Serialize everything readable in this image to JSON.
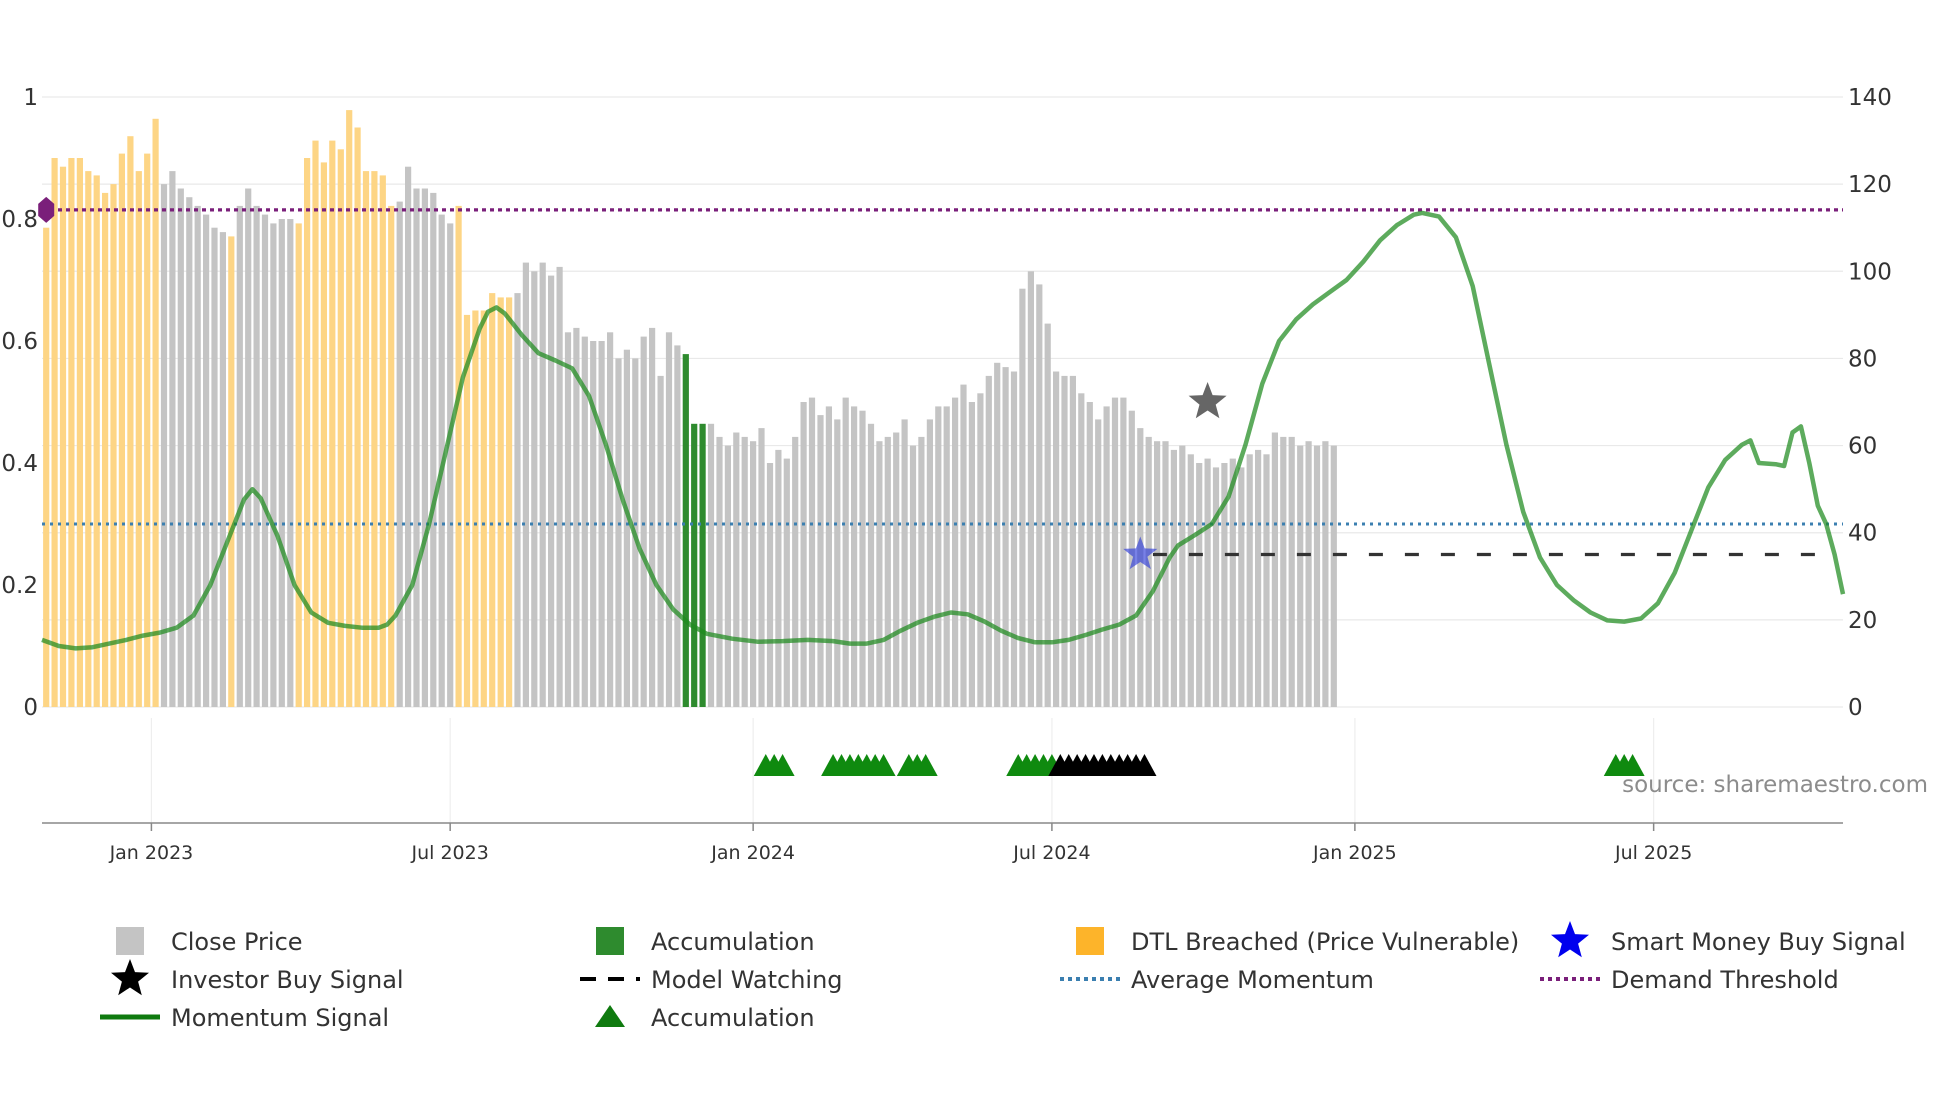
{
  "chart_data": {
    "type": "bar",
    "title": "",
    "source": "source: sharemaestro.com",
    "left_axis": {
      "ylim": [
        0,
        1
      ],
      "ticks": [
        "0",
        "0.2",
        "0.4",
        "0.6",
        "0.8",
        "1"
      ],
      "tick_values": [
        0,
        0.2,
        0.4,
        0.6,
        0.8,
        1
      ]
    },
    "right_axis": {
      "ylim": [
        0,
        140
      ],
      "ticks": [
        "0",
        "20",
        "40",
        "60",
        "80",
        "100",
        "120",
        "140"
      ],
      "tick_values": [
        0,
        20,
        40,
        60,
        80,
        100,
        120,
        140
      ]
    },
    "x_axis": {
      "range_weeks": [
        0,
        214
      ],
      "ticks": [
        {
          "label": "Jan 2023",
          "week": 13
        },
        {
          "label": "Jul 2023",
          "week": 48.5
        },
        {
          "label": "Jan 2024",
          "week": 84.5
        },
        {
          "label": "Jul 2024",
          "week": 120
        },
        {
          "label": "Jan 2025",
          "week": 156
        },
        {
          "label": "Jul 2025",
          "week": 191.5
        }
      ]
    },
    "series": [
      {
        "name": "Close Price",
        "axis": "right",
        "color": "#c4c4c4",
        "accum_color": "#2e8b2e",
        "dtl_color": "#fdd585",
        "values": [
          110,
          126,
          124,
          126,
          126,
          123,
          122,
          118,
          120,
          127,
          131,
          123,
          127,
          135,
          120,
          123,
          119,
          117,
          115,
          113,
          110,
          109,
          108,
          115,
          119,
          115,
          113,
          111,
          112,
          112,
          111,
          126,
          130,
          125,
          130,
          128,
          137,
          133,
          123,
          123,
          122,
          115,
          116,
          124,
          119,
          119,
          118,
          113,
          111,
          115,
          90,
          91,
          91,
          95,
          94,
          94,
          95,
          102,
          100,
          102,
          99,
          101,
          86,
          87,
          85,
          84,
          84,
          86,
          80,
          82,
          80,
          85,
          87,
          76,
          86,
          83,
          81,
          65,
          65,
          65,
          62,
          60,
          63,
          62,
          61,
          64,
          56,
          59,
          57,
          62,
          70,
          71,
          67,
          69,
          66,
          71,
          69,
          68,
          65,
          61,
          62,
          63,
          66,
          60,
          62,
          66,
          69,
          69,
          71,
          74,
          70,
          72,
          76,
          79,
          78,
          77,
          96,
          100,
          97,
          88,
          77,
          76,
          76,
          72,
          70,
          66,
          69,
          71,
          71,
          68,
          64,
          62,
          61,
          61,
          59,
          60,
          58,
          56,
          57,
          55,
          56,
          57,
          55,
          58,
          59,
          58,
          63,
          62,
          62,
          60,
          61,
          60,
          61,
          60
        ],
        "category_codes": "DDDDDDDDDDDDDDCCCCCCCCDCCCCCCCDDDDDDDDDDDDCCCCCCCDDDDDDDCCCCCCCCCCCCCCCCCCCCAAACCCCCCCCCCCCCCCCCCCCCCCCCCCCCCCCCCCCCCCCCCCCCC"
      },
      {
        "name": "Momentum Signal",
        "axis": "left",
        "color": "#1f8a1f"
      },
      {
        "name": "Average Momentum",
        "axis": "left",
        "value": 0.3,
        "color": "#3b7fb0"
      },
      {
        "name": "Demand Threshold",
        "axis": "left",
        "value": 0.815,
        "color": "#7a1f7a"
      },
      {
        "name": "Model Watching",
        "axis": "left",
        "value": 0.25,
        "from_week": 132,
        "to_week": 213,
        "color": "#333333"
      }
    ],
    "momentum_points": [
      [
        0,
        0.11
      ],
      [
        2,
        0.1
      ],
      [
        4,
        0.096
      ],
      [
        6,
        0.098
      ],
      [
        8,
        0.104
      ],
      [
        10,
        0.11
      ],
      [
        12,
        0.117
      ],
      [
        14,
        0.122
      ],
      [
        16,
        0.13
      ],
      [
        18,
        0.15
      ],
      [
        20,
        0.2
      ],
      [
        22,
        0.27
      ],
      [
        24,
        0.34
      ],
      [
        25,
        0.357
      ],
      [
        26,
        0.342
      ],
      [
        28,
        0.28
      ],
      [
        30,
        0.2
      ],
      [
        32,
        0.155
      ],
      [
        34,
        0.138
      ],
      [
        36,
        0.133
      ],
      [
        38,
        0.13
      ],
      [
        40,
        0.13
      ],
      [
        41,
        0.135
      ],
      [
        42,
        0.15
      ],
      [
        44,
        0.2
      ],
      [
        46,
        0.3
      ],
      [
        48,
        0.42
      ],
      [
        50,
        0.54
      ],
      [
        52,
        0.62
      ],
      [
        53,
        0.648
      ],
      [
        54,
        0.655
      ],
      [
        55,
        0.645
      ],
      [
        57,
        0.61
      ],
      [
        59,
        0.58
      ],
      [
        61,
        0.568
      ],
      [
        63,
        0.555
      ],
      [
        65,
        0.51
      ],
      [
        67,
        0.43
      ],
      [
        69,
        0.34
      ],
      [
        71,
        0.26
      ],
      [
        73,
        0.2
      ],
      [
        75,
        0.16
      ],
      [
        77,
        0.135
      ],
      [
        79,
        0.12
      ],
      [
        82,
        0.112
      ],
      [
        85,
        0.107
      ],
      [
        88,
        0.108
      ],
      [
        91,
        0.11
      ],
      [
        94,
        0.108
      ],
      [
        96,
        0.104
      ],
      [
        98,
        0.104
      ],
      [
        100,
        0.11
      ],
      [
        102,
        0.125
      ],
      [
        104,
        0.138
      ],
      [
        106,
        0.148
      ],
      [
        108,
        0.155
      ],
      [
        110,
        0.152
      ],
      [
        112,
        0.14
      ],
      [
        114,
        0.125
      ],
      [
        116,
        0.113
      ],
      [
        118,
        0.106
      ],
      [
        120,
        0.106
      ],
      [
        122,
        0.11
      ],
      [
        124,
        0.118
      ],
      [
        126,
        0.127
      ],
      [
        128,
        0.135
      ],
      [
        130,
        0.15
      ],
      [
        132,
        0.19
      ],
      [
        134,
        0.245
      ],
      [
        135,
        0.265
      ],
      [
        137,
        0.282
      ],
      [
        139,
        0.3
      ],
      [
        141,
        0.345
      ],
      [
        143,
        0.43
      ],
      [
        145,
        0.53
      ],
      [
        147,
        0.6
      ],
      [
        149,
        0.635
      ],
      [
        151,
        0.66
      ],
      [
        153,
        0.68
      ],
      [
        155,
        0.7
      ],
      [
        157,
        0.73
      ],
      [
        159,
        0.765
      ],
      [
        161,
        0.79
      ],
      [
        163,
        0.807
      ],
      [
        164,
        0.81
      ],
      [
        166,
        0.804
      ],
      [
        168,
        0.77
      ],
      [
        170,
        0.69
      ],
      [
        172,
        0.56
      ],
      [
        174,
        0.43
      ],
      [
        176,
        0.32
      ],
      [
        178,
        0.245
      ],
      [
        180,
        0.2
      ],
      [
        182,
        0.175
      ],
      [
        184,
        0.155
      ],
      [
        186,
        0.142
      ],
      [
        188,
        0.14
      ],
      [
        190,
        0.145
      ],
      [
        192,
        0.17
      ],
      [
        194,
        0.22
      ],
      [
        196,
        0.29
      ],
      [
        198,
        0.36
      ],
      [
        200,
        0.405
      ],
      [
        202,
        0.43
      ],
      [
        203,
        0.437
      ],
      [
        204,
        0.4
      ],
      [
        206,
        0.398
      ],
      [
        207,
        0.395
      ],
      [
        208,
        0.45
      ],
      [
        209,
        0.46
      ],
      [
        210,
        0.4
      ],
      [
        211,
        0.33
      ],
      [
        212,
        0.3
      ],
      [
        213,
        0.25
      ],
      [
        214,
        0.185
      ]
    ],
    "markers": {
      "investor_buy": [
        {
          "week": 138.5,
          "value": 0.5
        }
      ],
      "smart_money_buy": [
        {
          "week": 130.5,
          "value": 0.25
        }
      ],
      "demand_diamond": [
        {
          "week": 0.5,
          "value": 0.815
        }
      ],
      "accumulation_triangles_weeks": [
        86,
        87,
        88,
        94,
        95,
        96,
        97,
        98,
        99,
        100,
        103,
        104,
        105,
        116,
        117,
        118,
        119,
        120,
        187,
        188,
        189
      ],
      "watching_triangles_weeks": [
        121,
        122,
        123,
        124,
        125,
        126,
        127,
        128,
        129,
        130,
        131
      ]
    },
    "legend": {
      "position": "bottom",
      "items": [
        {
          "label": "Close Price",
          "symbol": "square",
          "color": "#c4c4c4"
        },
        {
          "label": "Accumulation",
          "symbol": "square",
          "color": "#2e8b2e"
        },
        {
          "label": "DTL Breached (Price Vulnerable)",
          "symbol": "square",
          "color": "#fdb42a"
        },
        {
          "label": "Smart Money Buy Signal",
          "symbol": "star",
          "color": "#0000ee"
        },
        {
          "label": "Investor Buy Signal",
          "symbol": "star",
          "color": "#000000"
        },
        {
          "label": "Model Watching",
          "symbol": "dash",
          "color": "#000000"
        },
        {
          "label": "Average Momentum",
          "symbol": "dot",
          "color": "#3b7fb0"
        },
        {
          "label": "Demand Threshold",
          "symbol": "dot",
          "color": "#7a1f7a"
        },
        {
          "label": "Momentum Signal",
          "symbol": "line",
          "color": "#0f7a0f"
        },
        {
          "label": "Accumulation",
          "symbol": "triangle",
          "color": "#0f7a0f"
        }
      ]
    }
  }
}
